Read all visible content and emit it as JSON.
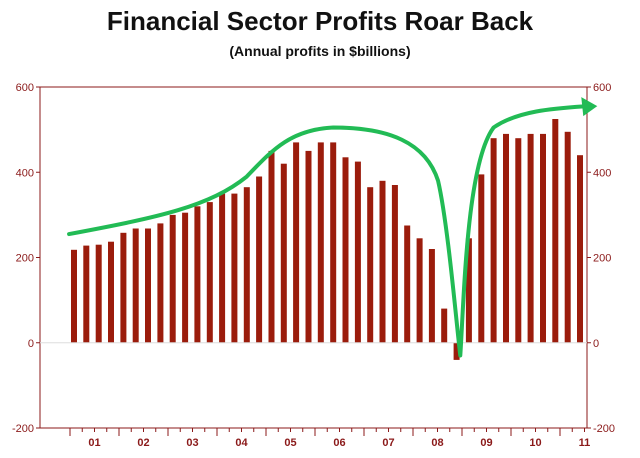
{
  "chart_data": {
    "type": "bar",
    "title": "Financial Sector Profits Roar Back",
    "subtitle": "(Annual profits in $billions)",
    "xlabel": "",
    "ylabel": "",
    "ylim": [
      -200,
      600
    ],
    "yticks": [
      600,
      400,
      200,
      0,
      -200
    ],
    "y_tick_labels": [
      "600",
      "400",
      "200",
      "0",
      "-200"
    ],
    "x_tick_labels": [
      "01",
      "02",
      "03",
      "04",
      "05",
      "06",
      "07",
      "08",
      "09",
      "10",
      "11"
    ],
    "bar_color": "#9b1c0c",
    "trend_color": "#22bb55",
    "axis_color": "#8b1a1a",
    "values": [
      218,
      228,
      230,
      237,
      258,
      268,
      268,
      280,
      300,
      305,
      320,
      330,
      350,
      350,
      365,
      390,
      450,
      420,
      470,
      450,
      470,
      470,
      435,
      425,
      365,
      380,
      370,
      275,
      245,
      220,
      80,
      -40,
      245,
      395,
      480,
      490,
      480,
      490,
      490,
      525,
      495,
      440
    ],
    "annotation": "trend arrow showing profits roaring back"
  }
}
